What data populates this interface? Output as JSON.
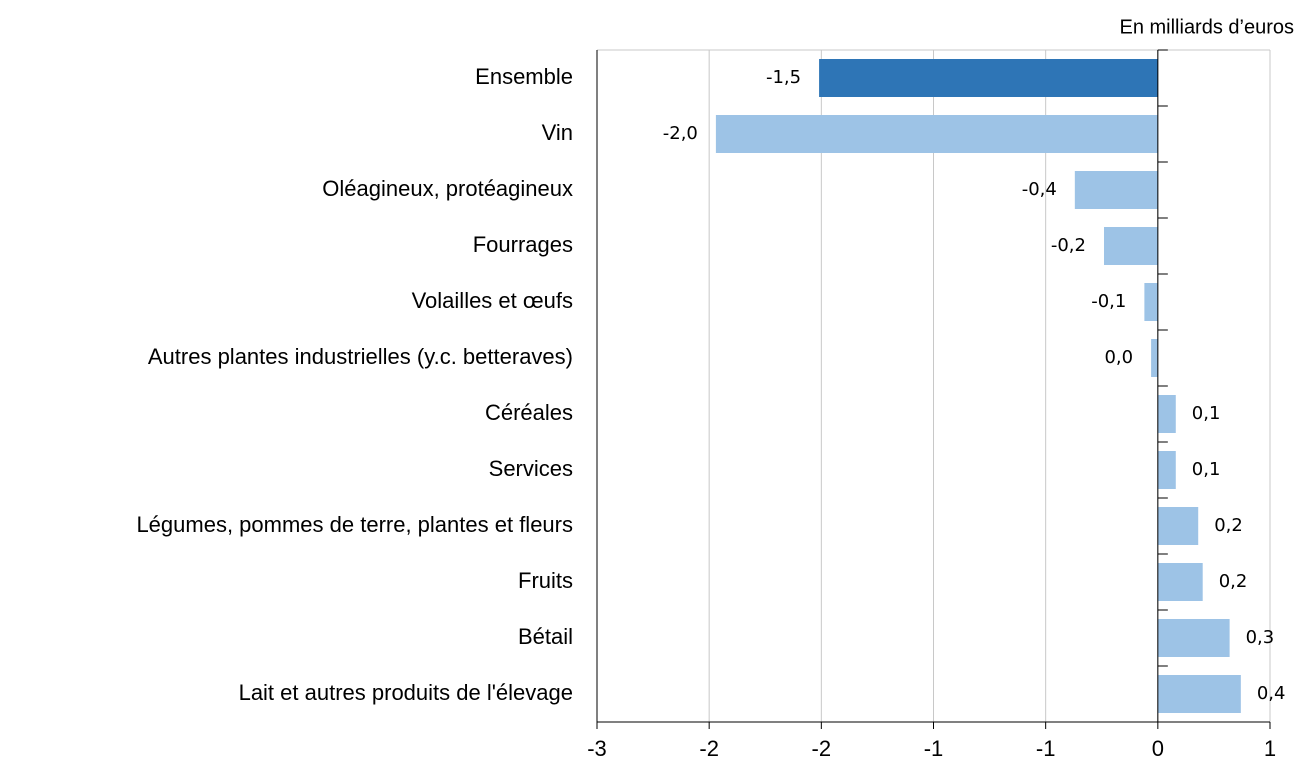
{
  "chart_data": {
    "type": "barh",
    "unit_label": "En milliards d’euros",
    "categories": [
      "Ensemble",
      "Vin",
      "Oléagineux, protéagineux",
      "Fourrages",
      "Volailles et œufs",
      "Autres plantes industrielles (y.c. betteraves)",
      "Céréales",
      "Services",
      "Légumes, pommes de terre, plantes et fleurs",
      "Fruits",
      "Bétail",
      "Lait et autres produits de l'élevage"
    ],
    "values": [
      -1.51,
      -1.97,
      -0.37,
      -0.24,
      -0.06,
      -0.03,
      0.08,
      0.08,
      0.18,
      0.2,
      0.32,
      0.37
    ],
    "value_labels": [
      "-1,5",
      "-2,0",
      "-0,4",
      "-0,2",
      "-0,1",
      "0,0",
      "0,1",
      "0,1",
      "0,2",
      "0,2",
      "0,3",
      "0,4"
    ],
    "colors": [
      "#2e75b6",
      "#9dc3e6",
      "#9dc3e6",
      "#9dc3e6",
      "#9dc3e6",
      "#9dc3e6",
      "#9dc3e6",
      "#9dc3e6",
      "#9dc3e6",
      "#9dc3e6",
      "#9dc3e6",
      "#9dc3e6"
    ],
    "xlim": [
      -2.5,
      0.5
    ],
    "xticks": [
      {
        "value": -2.5,
        "label": "-3"
      },
      -2,
      {
        "value": -1.5,
        "label": "-2"
      },
      {
        "value": -1,
        "label": "-1"
      },
      {
        "value": -0.5,
        "label": "-1"
      },
      0,
      {
        "value": 0.5,
        "label": "1"
      }
    ],
    "grid": true
  }
}
